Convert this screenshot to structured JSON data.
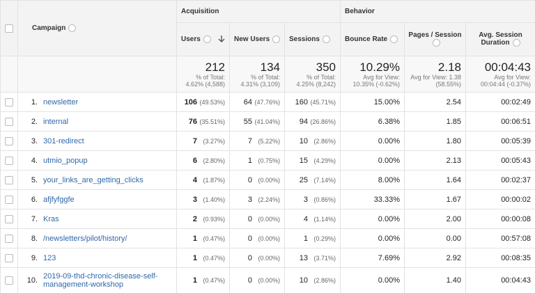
{
  "table": {
    "group_headers": [
      "Acquisition",
      "Behavior"
    ],
    "columns": [
      "Campaign",
      "Users",
      "New Users",
      "Sessions",
      "Bounce Rate",
      "Pages / Session",
      "Avg. Session Duration"
    ],
    "totals": [
      {
        "value": "212",
        "lines": [
          "% of Total:",
          "4.62% (4,588)"
        ]
      },
      {
        "value": "134",
        "lines": [
          "% of Total:",
          "4.31% (3,109)"
        ]
      },
      {
        "value": "350",
        "lines": [
          "% of Total:",
          "4.25% (8,242)"
        ]
      },
      {
        "value": "10.29%",
        "lines": [
          "Avg for View:",
          "10.35% (-0.62%)"
        ]
      },
      {
        "value": "2.18",
        "lines": [
          "Avg for View: 1.38",
          "(58.55%)"
        ]
      },
      {
        "value": "00:04:43",
        "lines": [
          "Avg for View:",
          "00:04:44 (-0.37%)"
        ]
      }
    ],
    "rows": [
      [
        "1.",
        "newsletter",
        "106",
        "(49.53%)",
        "64",
        "(47.76%)",
        "160",
        "(45.71%)",
        "15.00%",
        "2.54",
        "00:02:49"
      ],
      [
        "2.",
        "internal",
        "76",
        "(35.51%)",
        "55",
        "(41.04%)",
        "94",
        "(26.86%)",
        "6.38%",
        "1.85",
        "00:06:51"
      ],
      [
        "3.",
        "301-redirect",
        "7",
        "(3.27%)",
        "7",
        "(5.22%)",
        "10",
        "(2.86%)",
        "0.00%",
        "1.80",
        "00:05:39"
      ],
      [
        "4.",
        "utmio_popup",
        "6",
        "(2.80%)",
        "1",
        "(0.75%)",
        "15",
        "(4.29%)",
        "0.00%",
        "2.13",
        "00:05:43"
      ],
      [
        "5.",
        "your_links_are_getting_clicks",
        "4",
        "(1.87%)",
        "0",
        "(0.00%)",
        "25",
        "(7.14%)",
        "8.00%",
        "1.64",
        "00:02:37"
      ],
      [
        "6.",
        "afjfyfggfe",
        "3",
        "(1.40%)",
        "3",
        "(2.24%)",
        "3",
        "(0.86%)",
        "33.33%",
        "1.67",
        "00:00:02"
      ],
      [
        "7.",
        "Kras",
        "2",
        "(0.93%)",
        "0",
        "(0.00%)",
        "4",
        "(1.14%)",
        "0.00%",
        "2.00",
        "00:00:08"
      ],
      [
        "8.",
        "/newsletters/pilot/history/",
        "1",
        "(0.47%)",
        "0",
        "(0.00%)",
        "1",
        "(0.29%)",
        "0.00%",
        "0.00",
        "00:57:08"
      ],
      [
        "9.",
        "123",
        "1",
        "(0.47%)",
        "0",
        "(0.00%)",
        "13",
        "(3.71%)",
        "7.69%",
        "2.92",
        "00:08:35"
      ],
      [
        "10.",
        "2019-09-thd-chronic-disease-self-management-workshop",
        "1",
        "(0.47%)",
        "0",
        "(0.00%)",
        "10",
        "(2.86%)",
        "0.00%",
        "1.40",
        "00:04:43"
      ]
    ]
  }
}
